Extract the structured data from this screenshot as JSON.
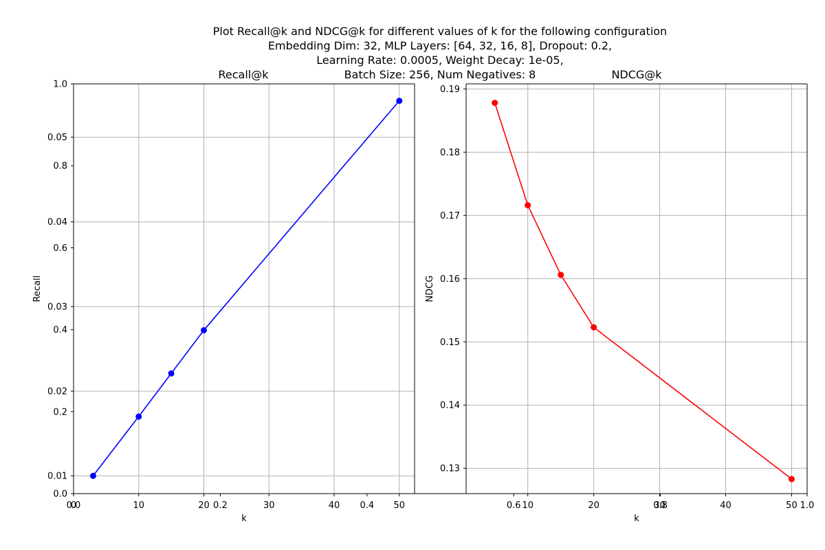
{
  "figure": {
    "suptitle_lines": [
      "Plot Recall@k and NDCG@k for different values of k for the following configuration",
      "Embedding Dim: 32, MLP Layers: [64, 32, 16, 8], Dropout: 0.2,",
      "Learning Rate: 0.0005, Weight Decay: 1e-05,",
      "Batch Size: 256, Num Negatives: 8"
    ],
    "background_axis_ticks": {
      "x": [
        "0.0",
        "0.2",
        "0.4",
        "0.6",
        "0.8",
        "1.0"
      ],
      "y": [
        "0.0",
        "0.2",
        "0.4",
        "0.6",
        "0.8",
        "1.0"
      ]
    }
  },
  "chart_data": [
    {
      "type": "line",
      "title": "Recall@k",
      "xlabel": "k",
      "ylabel": "Recall",
      "color": "#0000ff",
      "marker": "circle",
      "grid": true,
      "xlim": [
        0,
        52.35
      ],
      "ylim": [
        0.0079,
        0.0563
      ],
      "xticks": [
        0,
        10,
        20,
        30,
        40,
        50
      ],
      "yticks": [
        0.01,
        0.02,
        0.03,
        0.04,
        0.05
      ],
      "ytick_labels": [
        "0.01",
        "0.02",
        "0.03",
        "0.04",
        "0.05"
      ],
      "x": [
        3,
        10,
        15,
        20,
        50
      ],
      "y": [
        0.01,
        0.017,
        0.0221,
        0.0272,
        0.0543
      ]
    },
    {
      "type": "line",
      "title": "NDCG@k",
      "xlabel": "k",
      "ylabel": "NDCG",
      "color": "#ff0000",
      "marker": "circle",
      "grid": true,
      "xlim": [
        0.65,
        52.35
      ],
      "ylim": [
        0.126,
        0.1908
      ],
      "xticks": [
        10,
        20,
        30,
        40,
        50
      ],
      "yticks": [
        0.13,
        0.14,
        0.15,
        0.16,
        0.17,
        0.18,
        0.19
      ],
      "ytick_labels": [
        "0.13",
        "0.14",
        "0.15",
        "0.16",
        "0.17",
        "0.18",
        "0.19"
      ],
      "x": [
        5,
        10,
        15,
        20,
        50
      ],
      "y": [
        0.1878,
        0.1716,
        0.1606,
        0.1523,
        0.1283
      ]
    }
  ]
}
